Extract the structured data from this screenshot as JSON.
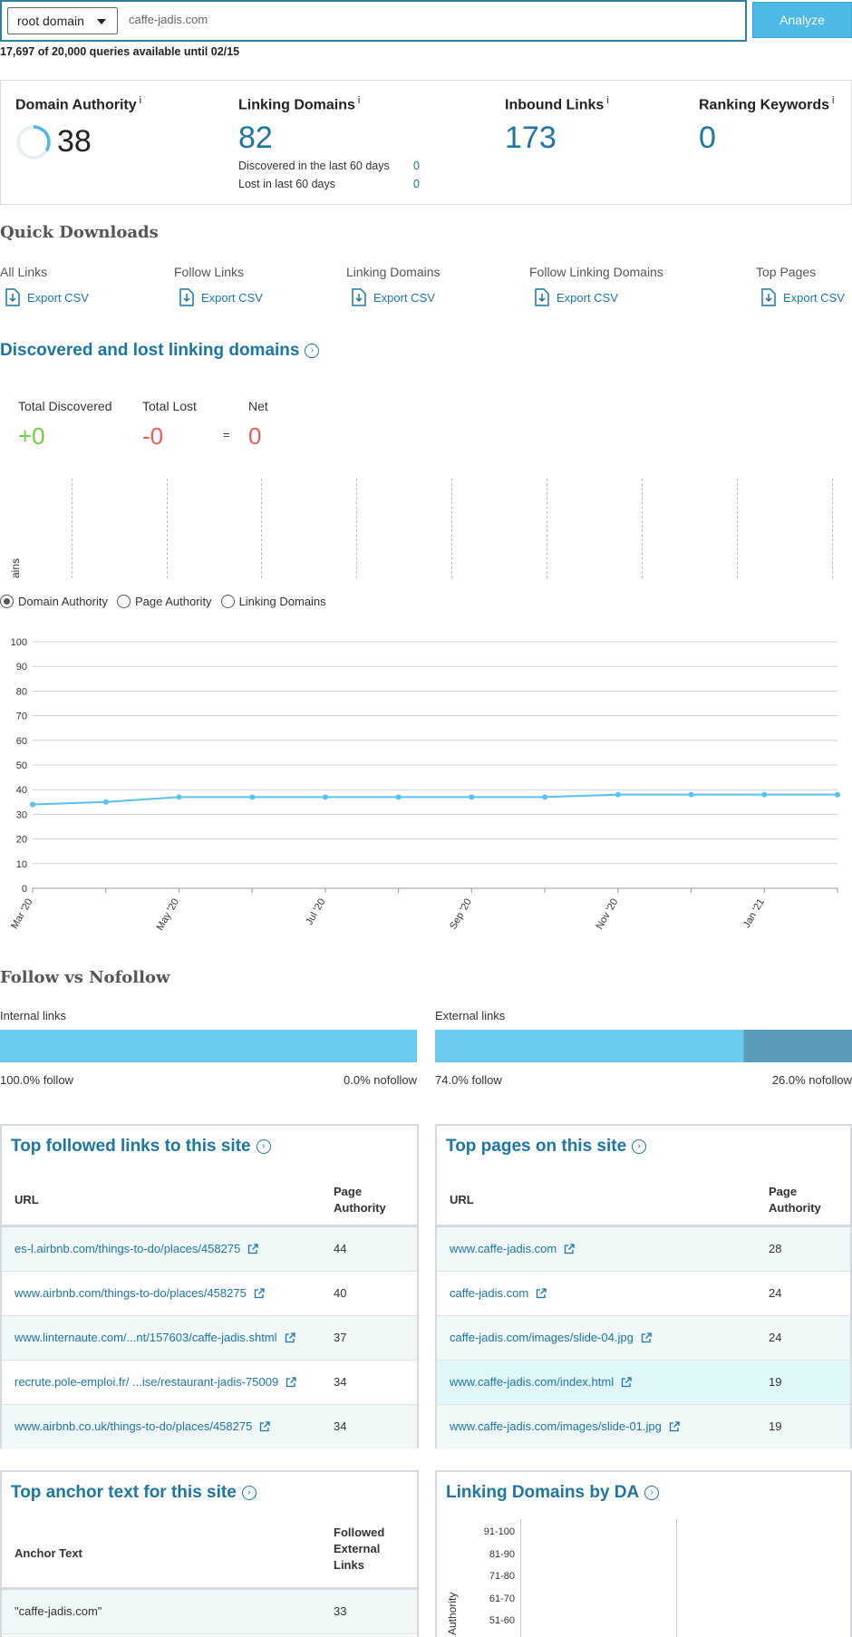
{
  "search": {
    "scope": "root domain",
    "query": "caffe-jadis.com",
    "analyze_label": "Analyze",
    "quota": "17,697 of 20,000 queries available until 02/15"
  },
  "metrics": {
    "domain_authority": {
      "label": "Domain Authority",
      "value": "38",
      "info": "i"
    },
    "linking_domains": {
      "label": "Linking Domains",
      "value": "82",
      "info": "i",
      "discovered_label": "Discovered in the last 60 days",
      "discovered_value": "0",
      "lost_label": "Lost in last 60 days",
      "lost_value": "0"
    },
    "inbound_links": {
      "label": "Inbound Links",
      "value": "173",
      "info": "i"
    },
    "ranking_keywords": {
      "label": "Ranking Keywords",
      "value": "0",
      "info": "i"
    }
  },
  "quick_downloads": {
    "title": "Quick Downloads",
    "items": [
      {
        "label": "All Links",
        "action": "Export CSV"
      },
      {
        "label": "Follow Links",
        "action": "Export CSV"
      },
      {
        "label": "Linking Domains",
        "action": "Export CSV"
      },
      {
        "label": "Follow Linking Domains",
        "action": "Export CSV"
      },
      {
        "label": "Top Pages",
        "action": "Export CSV"
      }
    ]
  },
  "discovered": {
    "title": "Discovered and lost linking domains",
    "total_discovered_label": "Total Discovered",
    "total_discovered": "+0",
    "total_lost_label": "Total Lost",
    "total_lost": "-0",
    "equals": "=",
    "net_label": "Net",
    "net": "0",
    "axis_fragment": "ains"
  },
  "history": {
    "options": [
      "Domain Authority",
      "Page Authority",
      "Linking Domains"
    ],
    "selected": "Domain Authority"
  },
  "chart_data": {
    "type": "line",
    "x": [
      "Mar '20",
      "Apr '20",
      "May '20",
      "Jun '20",
      "Jul '20",
      "Aug '20",
      "Sep '20",
      "Oct '20",
      "Nov '20",
      "Dec '20",
      "Jan '21",
      "Feb '21"
    ],
    "tick_labels": [
      "Mar '20",
      "May '20",
      "Jul '20",
      "Sep '20",
      "Nov '20",
      "Jan '21"
    ],
    "series": [
      {
        "values": [
          34,
          35,
          37,
          37,
          37,
          37,
          37,
          37,
          38,
          38,
          38,
          38
        ]
      }
    ],
    "ylim": [
      0,
      100
    ],
    "yticks": [
      0,
      10,
      20,
      30,
      40,
      50,
      60,
      70,
      80,
      90,
      100
    ],
    "grid": true,
    "color": "#58c2ee"
  },
  "follow": {
    "title": "Follow vs Nofollow",
    "internal": {
      "label": "Internal links",
      "follow_pct": 100.0,
      "follow_text": "100.0% follow",
      "nofollow_text": "0.0% nofollow"
    },
    "external": {
      "label": "External links",
      "follow_pct": 74.0,
      "follow_text": "74.0% follow",
      "nofollow_text": "26.0% nofollow"
    },
    "follow_color": "#6cc9ee",
    "nofollow_color": "#5b9cba"
  },
  "top_links": {
    "title": "Top followed links to this site",
    "col_url": "URL",
    "col_pa_1": "Page",
    "col_pa_2": "Authority",
    "rows": [
      {
        "url": "es-l.airbnb.com/things-to-do/places/458275",
        "pa": "44"
      },
      {
        "url": "www.airbnb.com/things-to-do/places/458275",
        "pa": "40"
      },
      {
        "url": "www.linternaute.com/...nt/157603/caffe-jadis.shtml",
        "pa": "37"
      },
      {
        "url": "recrute.pole-emploi.fr/ ...ise/restaurant-jadis-75009",
        "pa": "34"
      },
      {
        "url": "www.airbnb.co.uk/things-to-do/places/458275",
        "pa": "34"
      }
    ]
  },
  "top_pages": {
    "title": "Top pages on this site",
    "col_url": "URL",
    "col_pa_1": "Page",
    "col_pa_2": "Authority",
    "rows": [
      {
        "url": "www.caffe-jadis.com",
        "pa": "28"
      },
      {
        "url": "caffe-jadis.com",
        "pa": "24"
      },
      {
        "url": "caffe-jadis.com/images/slide-04.jpg",
        "pa": "24"
      },
      {
        "url": "www.caffe-jadis.com/index.html",
        "pa": "19"
      },
      {
        "url": "www.caffe-jadis.com/images/slide-01.jpg",
        "pa": "19"
      }
    ]
  },
  "anchor": {
    "title": "Top anchor text for this site",
    "col_text": "Anchor Text",
    "col_f1": "Followed",
    "col_f2": "External",
    "col_f3": "Links",
    "rows": [
      {
        "text": "\"caffe-jadis.com\"",
        "count": "33"
      }
    ]
  },
  "da_dist": {
    "title": "Linking Domains by DA",
    "y_label": "Authority",
    "buckets": [
      "91-100",
      "81-90",
      "71-80",
      "61-70",
      "51-60"
    ]
  }
}
